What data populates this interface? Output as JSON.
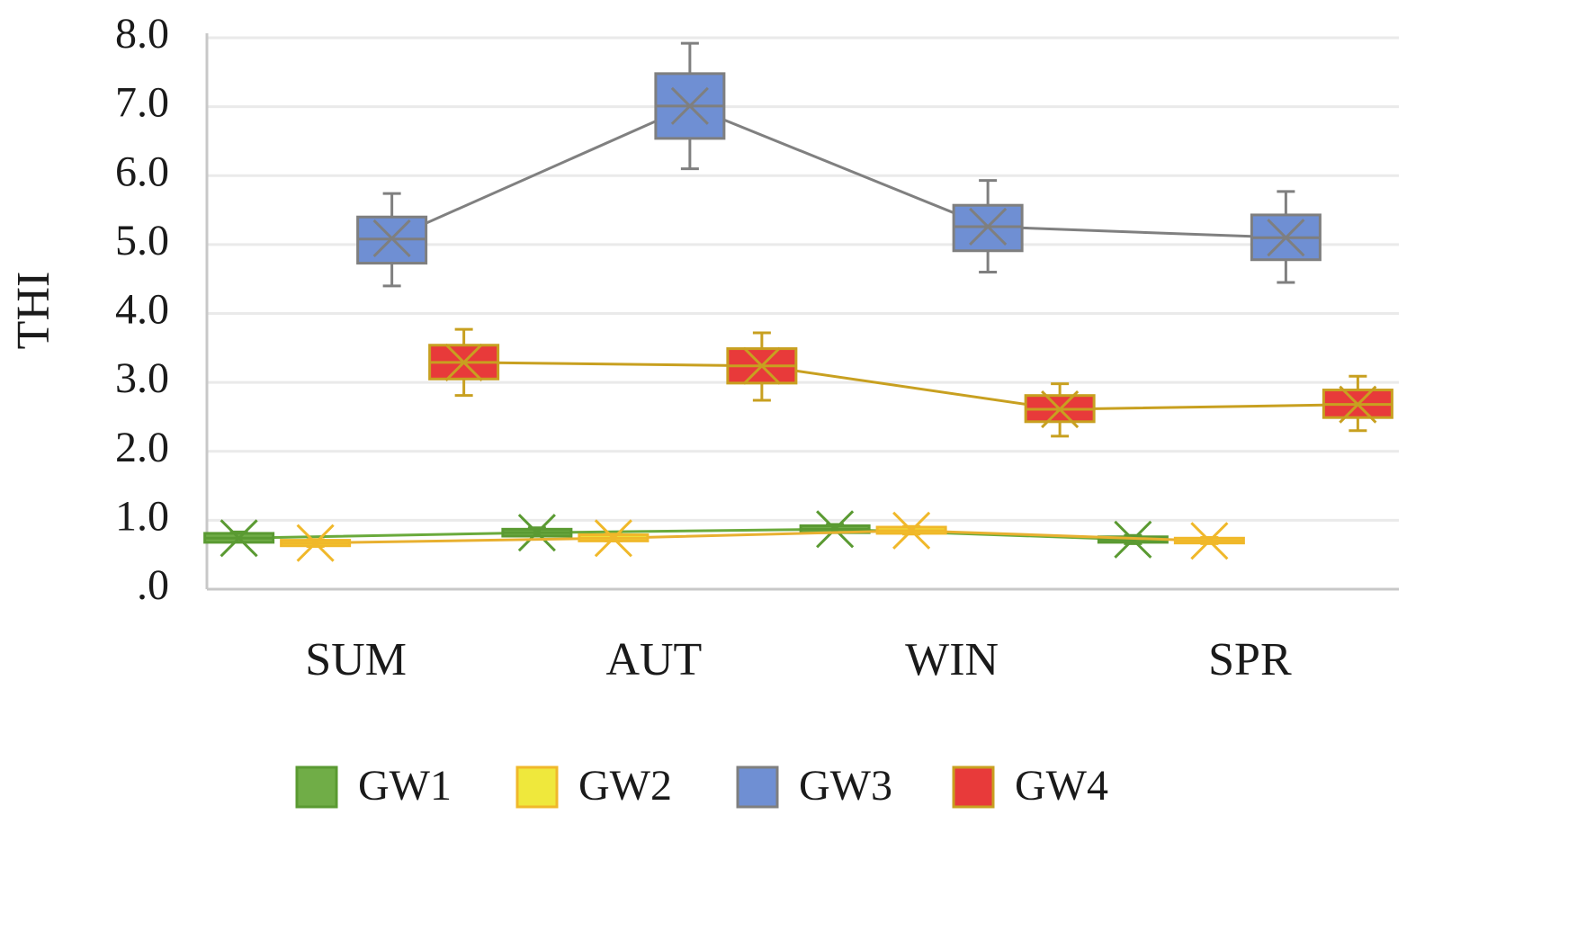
{
  "chart_data": {
    "type": "box",
    "y_label": "THI",
    "categories": [
      "SUM",
      "AUT",
      "WIN",
      "SPR"
    ],
    "ylim": [
      0,
      8
    ],
    "yticks": [
      {
        "value": 0,
        "label": ".0"
      },
      {
        "value": 1,
        "label": "1.0"
      },
      {
        "value": 2,
        "label": "2.0"
      },
      {
        "value": 3,
        "label": "3.0"
      },
      {
        "value": 4,
        "label": "4.0"
      },
      {
        "value": 5,
        "label": "5.0"
      },
      {
        "value": 6,
        "label": "6.0"
      },
      {
        "value": 7,
        "label": "7.0"
      },
      {
        "value": 8,
        "label": "8.0"
      }
    ],
    "grid": true,
    "legend": "bottom",
    "series": [
      {
        "name": "GW1",
        "color": "#70ad47",
        "stroke": "#5a9a32",
        "line_color": "#6aaa3c",
        "min": [
          0.7,
          0.78,
          0.83,
          0.66
        ],
        "q1": [
          0.68,
          0.77,
          0.82,
          0.68
        ],
        "median": [
          0.74,
          0.82,
          0.87,
          0.72
        ],
        "q3": [
          0.81,
          0.87,
          0.92,
          0.76
        ],
        "max": [
          0.83,
          0.89,
          0.94,
          0.78
        ],
        "mean": [
          0.74,
          0.82,
          0.87,
          0.72
        ]
      },
      {
        "name": "GW2",
        "color": "#efe83c",
        "stroke": "#f0b82a",
        "line_color": "#e8b030",
        "min": [
          0.62,
          0.7,
          0.8,
          0.66
        ],
        "q1": [
          0.63,
          0.7,
          0.81,
          0.67
        ],
        "median": [
          0.67,
          0.74,
          0.85,
          0.7
        ],
        "q3": [
          0.71,
          0.79,
          0.9,
          0.74
        ],
        "max": [
          0.72,
          0.8,
          0.91,
          0.75
        ],
        "mean": [
          0.67,
          0.74,
          0.85,
          0.7
        ]
      },
      {
        "name": "GW3",
        "color": "#6f8fd3",
        "stroke": "#7f7f7f",
        "line_color": "#808080",
        "min": [
          4.4,
          6.1,
          4.6,
          4.45
        ],
        "q1": [
          4.73,
          6.54,
          4.91,
          4.78
        ],
        "median": [
          5.08,
          7.01,
          5.26,
          5.1
        ],
        "q3": [
          5.4,
          7.48,
          5.57,
          5.43
        ],
        "max": [
          5.74,
          7.92,
          5.93,
          5.77
        ],
        "mean": [
          5.09,
          7.01,
          5.26,
          5.1
        ]
      },
      {
        "name": "GW4",
        "color": "#e83a3a",
        "stroke": "#c8a020",
        "line_color": "#c8a020",
        "min": [
          2.81,
          2.74,
          2.22,
          2.3
        ],
        "q1": [
          3.05,
          2.99,
          2.43,
          2.49
        ],
        "median": [
          3.29,
          3.24,
          2.61,
          2.68
        ],
        "q3": [
          3.54,
          3.49,
          2.81,
          2.89
        ],
        "max": [
          3.77,
          3.72,
          2.98,
          3.09
        ],
        "mean": [
          3.29,
          3.24,
          2.61,
          2.68
        ]
      }
    ]
  }
}
